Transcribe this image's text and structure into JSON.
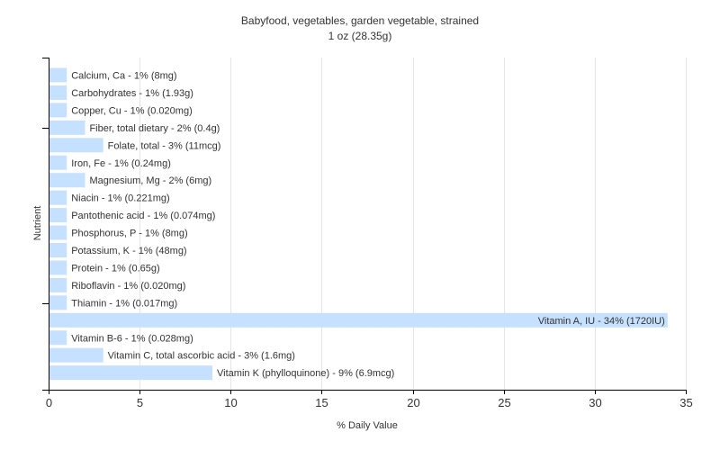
{
  "colors": {
    "bar": "#c6e0ff",
    "grid": "#e6e6e6",
    "axis": "#000000",
    "text": "#333333",
    "background": "#ffffff"
  },
  "chart_data": {
    "type": "bar",
    "orientation": "horizontal",
    "title": "Babyfood, vegetables, garden vegetable, strained",
    "subtitle": "1 oz (28.35g)",
    "xlabel": "% Daily Value",
    "ylabel": "Nutrient",
    "xlim": [
      0,
      35
    ],
    "xticks": [
      0,
      5,
      10,
      15,
      20,
      25,
      30,
      35
    ],
    "grid": true,
    "legend": "none",
    "categories": [
      "Calcium, Ca",
      "Carbohydrates",
      "Copper, Cu",
      "Fiber, total dietary",
      "Folate, total",
      "Iron, Fe",
      "Magnesium, Mg",
      "Niacin",
      "Pantothenic acid",
      "Phosphorus, P",
      "Potassium, K",
      "Protein",
      "Riboflavin",
      "Thiamin",
      "Vitamin A, IU",
      "Vitamin B-6",
      "Vitamin C, total ascorbic acid",
      "Vitamin K (phylloquinone)"
    ],
    "values": [
      1,
      1,
      1,
      2,
      3,
      1,
      2,
      1,
      1,
      1,
      1,
      1,
      1,
      1,
      34,
      1,
      3,
      9
    ],
    "data_labels": [
      "Calcium, Ca - 1% (8mg)",
      "Carbohydrates - 1% (1.93g)",
      "Copper, Cu - 1% (0.020mg)",
      "Fiber, total dietary - 2% (0.4g)",
      "Folate, total - 3% (11mcg)",
      "Iron, Fe - 1% (0.24mg)",
      "Magnesium, Mg - 2% (6mg)",
      "Niacin - 1% (0.221mg)",
      "Pantothenic acid - 1% (0.074mg)",
      "Phosphorus, P - 1% (8mg)",
      "Potassium, K - 1% (48mg)",
      "Protein - 1% (0.65g)",
      "Riboflavin - 1% (0.020mg)",
      "Thiamin - 1% (0.017mg)",
      "Vitamin A, IU - 34% (1720IU)",
      "Vitamin B-6 - 1% (0.028mg)",
      "Vitamin C, total ascorbic acid - 3% (1.6mg)",
      "Vitamin K (phylloquinone) - 9% (6.9mcg)"
    ]
  }
}
